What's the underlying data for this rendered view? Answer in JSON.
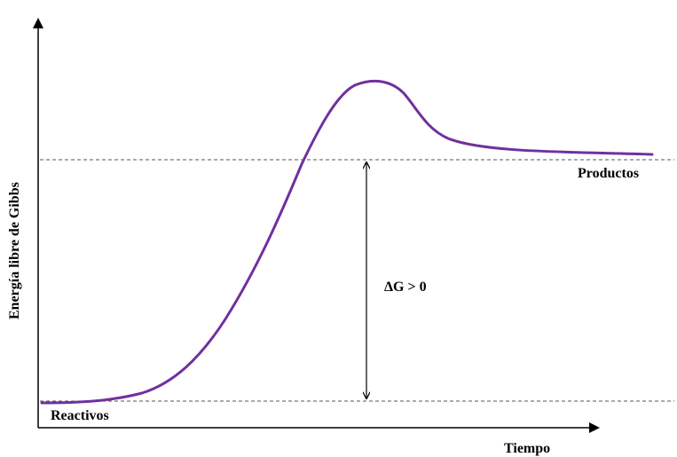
{
  "axes": {
    "y_label": "Energía libre de Gibbs",
    "x_label": "Tiempo"
  },
  "levels": {
    "reactants_label": "Reactivos",
    "products_label": "Productos"
  },
  "delta": {
    "label": "ΔG > 0"
  },
  "colors": {
    "curve": "#7030A0",
    "axis": "#000000",
    "dashed": "#555555"
  }
}
